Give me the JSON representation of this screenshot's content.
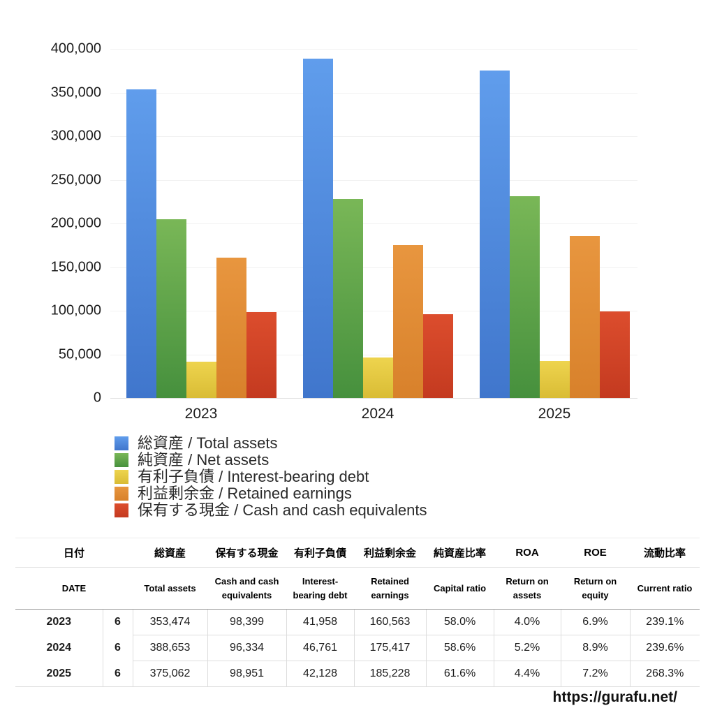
{
  "chart_data": {
    "type": "bar",
    "title": "",
    "xlabel": "",
    "ylabel": "",
    "categories": [
      "2023",
      "2024",
      "2025"
    ],
    "series": [
      {
        "name": "総資産 / Total assets",
        "slug": "total-assets",
        "color_top": "#609dec",
        "color_bottom": "#4076cc",
        "values": [
          353474,
          388653,
          375062
        ]
      },
      {
        "name": "純資産 / Net assets",
        "slug": "net-assets",
        "color_top": "#79b757",
        "color_bottom": "#46903d",
        "values": [
          205015,
          227751,
          231038
        ]
      },
      {
        "name": "有利子負債 / Interest-bearing debt",
        "slug": "interest-bearing-debt",
        "color_top": "#eed44e",
        "color_bottom": "#d9bc35",
        "values": [
          41958,
          46761,
          42128
        ]
      },
      {
        "name": "利益剰余金 / Retained earnings",
        "slug": "retained-earnings",
        "color_top": "#e8963f",
        "color_bottom": "#d8812b",
        "values": [
          160563,
          175417,
          185228
        ]
      },
      {
        "name": "保有する現金 /  Cash and cash equivalents",
        "slug": "cash-and-cash-equivalents",
        "color_top": "#dc4d2d",
        "color_bottom": "#c43a20",
        "values": [
          98399,
          96334,
          98951
        ]
      }
    ],
    "ylim": [
      0,
      400000
    ],
    "yticks": [
      400000,
      350000,
      300000,
      250000,
      200000,
      150000,
      100000,
      50000,
      0
    ],
    "ytick_labels": [
      "400,000",
      "350,000",
      "300,000",
      "250,000",
      "200,000",
      "150,000",
      "100,000",
      "50,000",
      "0"
    ],
    "grid": true,
    "legend_position": "below-left"
  },
  "table": {
    "header_ja": [
      "日付",
      "総資産",
      "保有する現金",
      "有利子負債",
      "利益剰余金",
      "純資産比率",
      "ROA",
      "ROE",
      "流動比率"
    ],
    "header_en": [
      "DATE",
      "Total assets",
      "Cash and cash equivalents",
      "Interest-bearing debt",
      "Retained earnings",
      "Capital ratio",
      "Return on assets",
      "Return on equity",
      "Current ratio"
    ],
    "rows": [
      {
        "year": "2023",
        "month": "6",
        "values": [
          "353,474",
          "98,399",
          "41,958",
          "160,563",
          "58.0%",
          "4.0%",
          "6.9%",
          "239.1%"
        ]
      },
      {
        "year": "2024",
        "month": "6",
        "values": [
          "388,653",
          "96,334",
          "46,761",
          "175,417",
          "58.6%",
          "5.2%",
          "8.9%",
          "239.6%"
        ]
      },
      {
        "year": "2025",
        "month": "6",
        "values": [
          "375,062",
          "98,951",
          "42,128",
          "185,228",
          "61.6%",
          "4.4%",
          "7.2%",
          "268.3%"
        ]
      }
    ]
  },
  "footer": {
    "url": "https://gurafu.net/"
  }
}
